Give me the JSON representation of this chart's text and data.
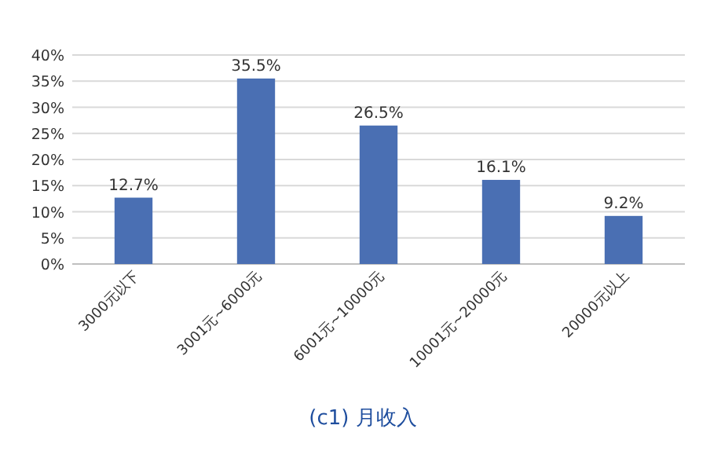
{
  "chart_data": {
    "type": "bar",
    "title": "(c1)  月收入",
    "categories": [
      "3000元以下",
      "3001元~6000元",
      "6001元~10000元",
      "10001元~20000元",
      "20000元以上"
    ],
    "values": [
      12.7,
      35.5,
      26.5,
      16.1,
      9.2
    ],
    "value_labels": [
      "12.7%",
      "35.5%",
      "26.5%",
      "16.1%",
      "9.2%"
    ],
    "color": "#4a6fb3",
    "ylim": [
      0,
      40
    ],
    "yticks": [
      {
        "value": 0,
        "label": "0%"
      },
      {
        "value": 5,
        "label": "5%"
      },
      {
        "value": 10,
        "label": "10%"
      },
      {
        "value": 15,
        "label": "15%"
      },
      {
        "value": 20,
        "label": "20%"
      },
      {
        "value": 25,
        "label": "25%"
      },
      {
        "value": 30,
        "label": "30%"
      },
      {
        "value": 35,
        "label": "35%"
      },
      {
        "value": 40,
        "label": "40%"
      }
    ],
    "grid": "y"
  }
}
